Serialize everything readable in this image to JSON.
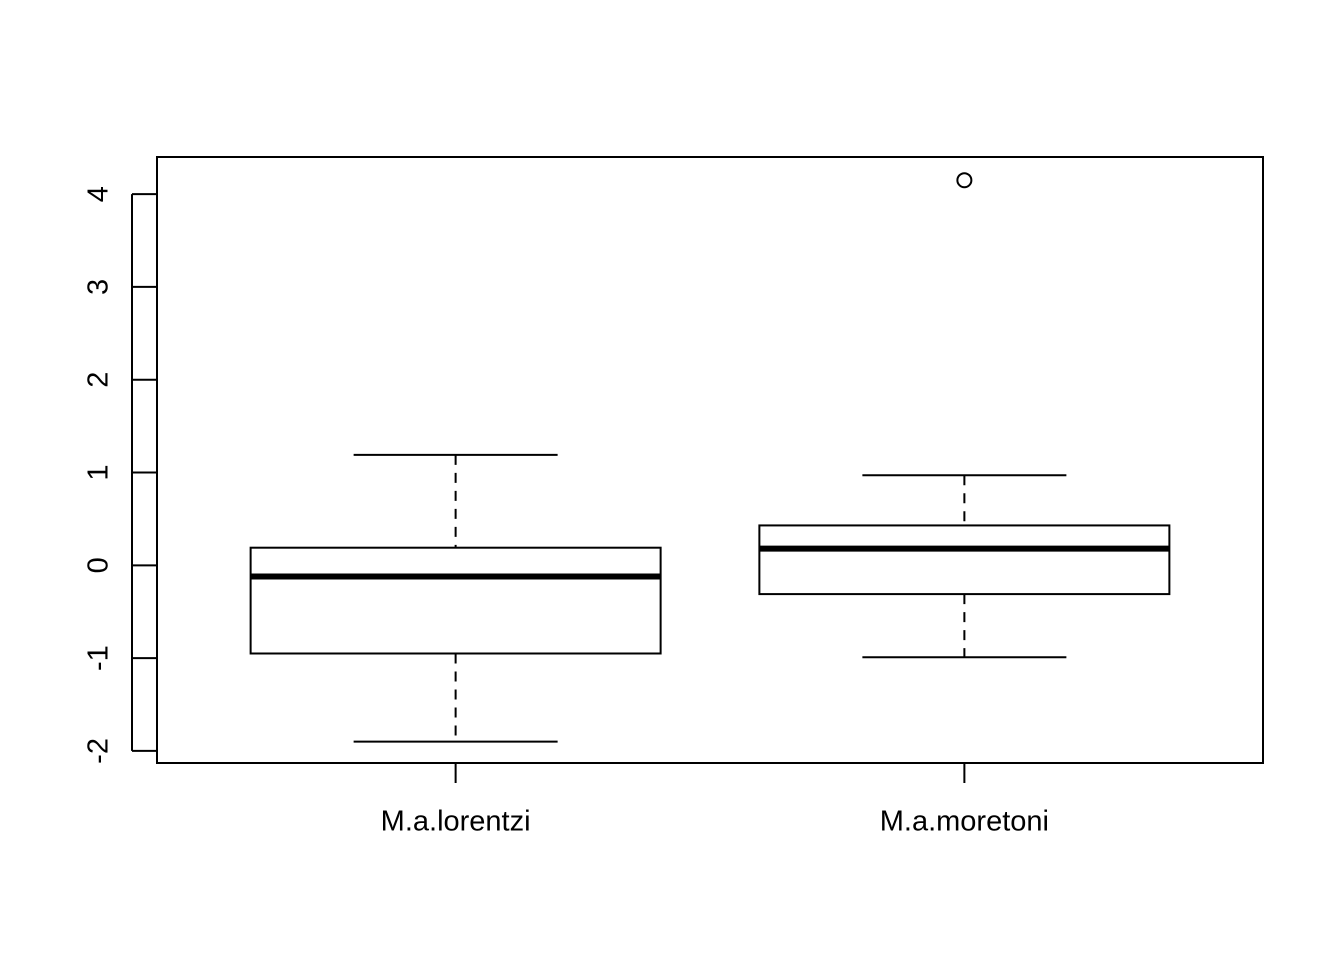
{
  "chart_data": {
    "type": "boxplot",
    "title": "",
    "xlabel": "",
    "ylabel": "",
    "ylim": [
      -2.13,
      4.4
    ],
    "y_ticks": [
      -2,
      -1,
      0,
      1,
      2,
      3,
      4
    ],
    "categories": [
      "M.a.lorentzi",
      "M.a.moretoni"
    ],
    "boxes": [
      {
        "name": "M.a.lorentzi",
        "whisker_low": -1.9,
        "q1": -0.95,
        "median": -0.12,
        "q3": 0.19,
        "whisker_high": 1.19,
        "outliers": []
      },
      {
        "name": "M.a.moretoni",
        "whisker_low": -0.99,
        "q1": -0.31,
        "median": 0.18,
        "q3": 0.43,
        "whisker_high": 0.97,
        "outliers": [
          4.15
        ]
      }
    ],
    "grid": false,
    "colors": {
      "box_fill": "#ffffff",
      "stroke": "#000000"
    }
  }
}
